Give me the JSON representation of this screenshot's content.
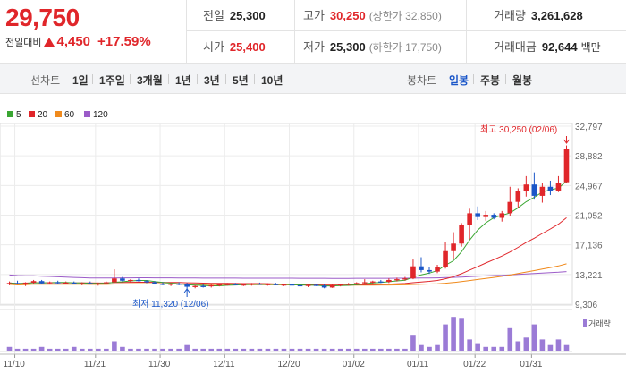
{
  "quote": {
    "price": "29,750",
    "change_label": "전일대비",
    "change": "4,450",
    "rate": "+17.59%"
  },
  "stats": {
    "prev_label": "전일",
    "prev": "25,300",
    "open_label": "시가",
    "open": "25,400",
    "high_label": "고가",
    "high": "30,250",
    "upper_limit": "(상한가 32,850)",
    "low_label": "저가",
    "low": "25,300",
    "lower_limit": "(하한가 17,750)",
    "volume_label": "거래량",
    "volume": "3,261,628",
    "amount_label": "거래대금",
    "amount": "92,644",
    "amount_unit": "백만"
  },
  "periods": {
    "line_group": "선차트",
    "line_items": [
      "1일",
      "1주일",
      "3개월",
      "1년",
      "3년",
      "5년",
      "10년"
    ],
    "candle_group": "봉차트",
    "candle_items": [
      "일봉",
      "주봉",
      "월봉"
    ],
    "active_candle": "일봉"
  },
  "colors": {
    "up": "#e0262a",
    "down": "#1a56c8",
    "ma5": "#3aa632",
    "ma20": "#e0262a",
    "ma60": "#f08a1c",
    "ma120": "#9b5bc8",
    "volume": "#9b7bd6"
  },
  "legend": [
    {
      "label": "5",
      "color": "#3aa632"
    },
    {
      "label": "20",
      "color": "#e0262a"
    },
    {
      "label": "60",
      "color": "#f08a1c"
    },
    {
      "label": "120",
      "color": "#9b5bc8"
    }
  ],
  "volume_label": "거래량",
  "chart_data": {
    "type": "candlestick",
    "ylim": [
      9306,
      32797
    ],
    "y_ticks": [
      "32,797",
      "28,882",
      "24,967",
      "21,052",
      "17,136",
      "13,221",
      "9,306"
    ],
    "x_ticks": [
      "11/10",
      "11/21",
      "11/30",
      "12/11",
      "12/20",
      "01/02",
      "01/11",
      "01/22",
      "01/31"
    ],
    "max_annotation": "최고 30,250 (02/06)",
    "min_annotation": "최저 11,320 (12/06)",
    "candles": [
      [
        12000,
        12300,
        11800,
        12100
      ],
      [
        12100,
        12400,
        11900,
        11950
      ],
      [
        11950,
        12200,
        11700,
        12150
      ],
      [
        12150,
        12500,
        12000,
        12350
      ],
      [
        12350,
        12500,
        12000,
        12050
      ],
      [
        12050,
        12300,
        11900,
        12200
      ],
      [
        12200,
        12400,
        12000,
        12100
      ],
      [
        12100,
        12300,
        11900,
        12150
      ],
      [
        12150,
        12300,
        11950,
        12000
      ],
      [
        12000,
        12200,
        11800,
        12100
      ],
      [
        12100,
        12300,
        11900,
        11950
      ],
      [
        11950,
        12150,
        11750,
        12050
      ],
      [
        12050,
        12300,
        11900,
        12200
      ],
      [
        12200,
        13900,
        12100,
        12700
      ],
      [
        12700,
        12900,
        12300,
        12400
      ],
      [
        12400,
        12600,
        12200,
        12500
      ],
      [
        12500,
        12700,
        12300,
        12350
      ],
      [
        12350,
        12500,
        12100,
        12200
      ],
      [
        12200,
        12350,
        11900,
        12000
      ],
      [
        12000,
        12200,
        11800,
        11850
      ],
      [
        11850,
        12100,
        11700,
        12000
      ],
      [
        12000,
        12200,
        11800,
        11900
      ],
      [
        11900,
        12100,
        11320,
        11600
      ],
      [
        11600,
        11800,
        11400,
        11700
      ],
      [
        11700,
        11900,
        11500,
        11650
      ],
      [
        11650,
        11900,
        11500,
        11800
      ],
      [
        11800,
        12000,
        11650,
        11900
      ],
      [
        11900,
        12100,
        11750,
        11950
      ],
      [
        11950,
        12100,
        11800,
        11850
      ],
      [
        11850,
        12000,
        11700,
        11900
      ],
      [
        11900,
        12100,
        11750,
        12000
      ],
      [
        12000,
        12150,
        11850,
        11900
      ],
      [
        11900,
        12050,
        11750,
        11950
      ],
      [
        11950,
        12100,
        11800,
        11850
      ],
      [
        11850,
        12000,
        11700,
        11900
      ],
      [
        11900,
        12050,
        11750,
        11800
      ],
      [
        11800,
        11950,
        11650,
        11700
      ],
      [
        11700,
        11900,
        11550,
        11850
      ],
      [
        11850,
        12000,
        11700,
        11750
      ],
      [
        11750,
        11900,
        11400,
        11500
      ],
      [
        11500,
        11900,
        11450,
        11800
      ],
      [
        11800,
        12000,
        11650,
        11900
      ],
      [
        11900,
        12100,
        11750,
        12000
      ],
      [
        12000,
        12200,
        11850,
        12100
      ],
      [
        12100,
        12600,
        12000,
        12200
      ],
      [
        12200,
        12400,
        12000,
        12300
      ],
      [
        12300,
        12500,
        12100,
        12250
      ],
      [
        12250,
        12700,
        12100,
        12500
      ],
      [
        12500,
        12800,
        12300,
        12600
      ],
      [
        12600,
        12900,
        12400,
        12700
      ],
      [
        12700,
        15200,
        12600,
        14300
      ],
      [
        14300,
        15500,
        13500,
        13800
      ],
      [
        13800,
        14200,
        13300,
        13600
      ],
      [
        13600,
        14500,
        13400,
        14200
      ],
      [
        14200,
        17500,
        14000,
        16300
      ],
      [
        16300,
        18800,
        15300,
        17300
      ],
      [
        17300,
        20000,
        16900,
        19700
      ],
      [
        19700,
        21900,
        17900,
        21300
      ],
      [
        21300,
        22200,
        20400,
        20800
      ],
      [
        20800,
        21600,
        20300,
        21100
      ],
      [
        21100,
        21300,
        20500,
        20700
      ],
      [
        20700,
        21600,
        20200,
        21300
      ],
      [
        21300,
        24800,
        20900,
        22800
      ],
      [
        22800,
        24600,
        22000,
        24200
      ],
      [
        24200,
        26200,
        23500,
        25100
      ],
      [
        25100,
        26700,
        23100,
        23600
      ],
      [
        23600,
        25300,
        22700,
        24800
      ],
      [
        24800,
        25600,
        23700,
        24300
      ],
      [
        24300,
        26200,
        24100,
        25300
      ],
      [
        25400,
        30250,
        25300,
        29750
      ]
    ],
    "volume": [
      0.1,
      0.05,
      0.05,
      0.05,
      0.1,
      0.05,
      0.05,
      0.05,
      0.1,
      0.05,
      0.05,
      0.05,
      0.05,
      0.25,
      0.1,
      0.05,
      0.05,
      0.05,
      0.05,
      0.05,
      0.05,
      0.05,
      0.15,
      0.05,
      0.05,
      0.05,
      0.05,
      0.05,
      0.05,
      0.05,
      0.05,
      0.05,
      0.05,
      0.05,
      0.05,
      0.05,
      0.05,
      0.05,
      0.05,
      0.05,
      0.05,
      0.05,
      0.05,
      0.05,
      0.05,
      0.05,
      0.05,
      0.05,
      0.05,
      0.05,
      0.4,
      0.15,
      0.1,
      0.15,
      0.7,
      0.9,
      0.85,
      0.3,
      0.2,
      0.1,
      0.1,
      0.1,
      0.6,
      0.25,
      0.35,
      0.7,
      0.3,
      0.15,
      0.3,
      0.15
    ]
  }
}
